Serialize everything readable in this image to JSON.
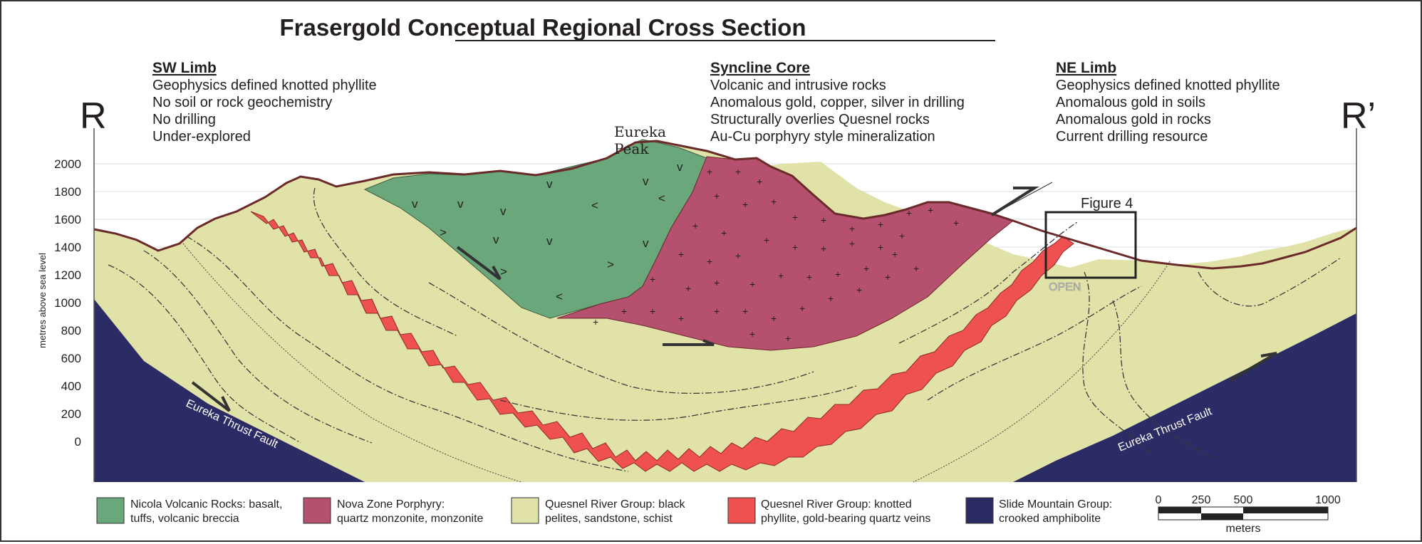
{
  "title": "Frasergold Conceptual Regional Cross Section",
  "section_ends": {
    "left": "R",
    "right": "R’"
  },
  "annotations": {
    "sw_limb": {
      "heading": "SW Limb",
      "lines": [
        "Geophysics defined knotted phyllite",
        "No soil or rock geochemistry",
        "No drilling",
        "Under-explored"
      ]
    },
    "syncline_core": {
      "heading": "Syncline Core",
      "lines": [
        "Volcanic and intrusive rocks",
        "Anomalous gold, copper, silver in drilling",
        "Structurally overlies Quesnel rocks",
        "Au-Cu porphyry style mineralization"
      ]
    },
    "ne_limb": {
      "heading": "NE Limb",
      "lines": [
        "Geophysics defined knotted phyllite",
        "Anomalous gold in soils",
        "Anomalous gold in rocks",
        "Current drilling resource"
      ]
    }
  },
  "peak_label": [
    "Eureka",
    "Peak"
  ],
  "figure_label": "Figure 4",
  "open_label": "OPEN",
  "fault_labels": {
    "left": "Eureka Thrust Fault",
    "right": "Eureka Thrust Fault"
  },
  "y_axis": {
    "label": "metres above sea level",
    "ticks": [
      "2000",
      "1800",
      "1600",
      "1400",
      "1200",
      "1000",
      "800",
      "600",
      "400",
      "200",
      "0"
    ]
  },
  "legend": [
    {
      "color": "#6aa77a",
      "lines": [
        "Nicola Volcanic Rocks: basalt,",
        "tuffs, volcanic breccia"
      ]
    },
    {
      "color": "#b5506f",
      "lines": [
        "Nova Zone Porphyry:",
        "quartz monzonite, monzonite"
      ]
    },
    {
      "color": "#e1e2a8",
      "lines": [
        "Quesnel River Group: black",
        "pelites, sandstone, schist"
      ]
    },
    {
      "color": "#ef5151",
      "lines": [
        "Quesnel River Group: knotted",
        "phyllite, gold-bearing quartz veins"
      ]
    },
    {
      "color": "#2b2b66",
      "lines": [
        "Slide Mountain Group:",
        "crooked amphibolite"
      ]
    }
  ],
  "scale_bar": {
    "labels": [
      "0",
      "250",
      "500",
      "1000"
    ],
    "unit": "meters"
  },
  "colors": {
    "nicola": "#6aa77a",
    "nova": "#b5506f",
    "quesnel": "#e1e2a8",
    "phyllite": "#ef5151",
    "slide": "#2b2b66",
    "topo": "#6b2a2a"
  }
}
